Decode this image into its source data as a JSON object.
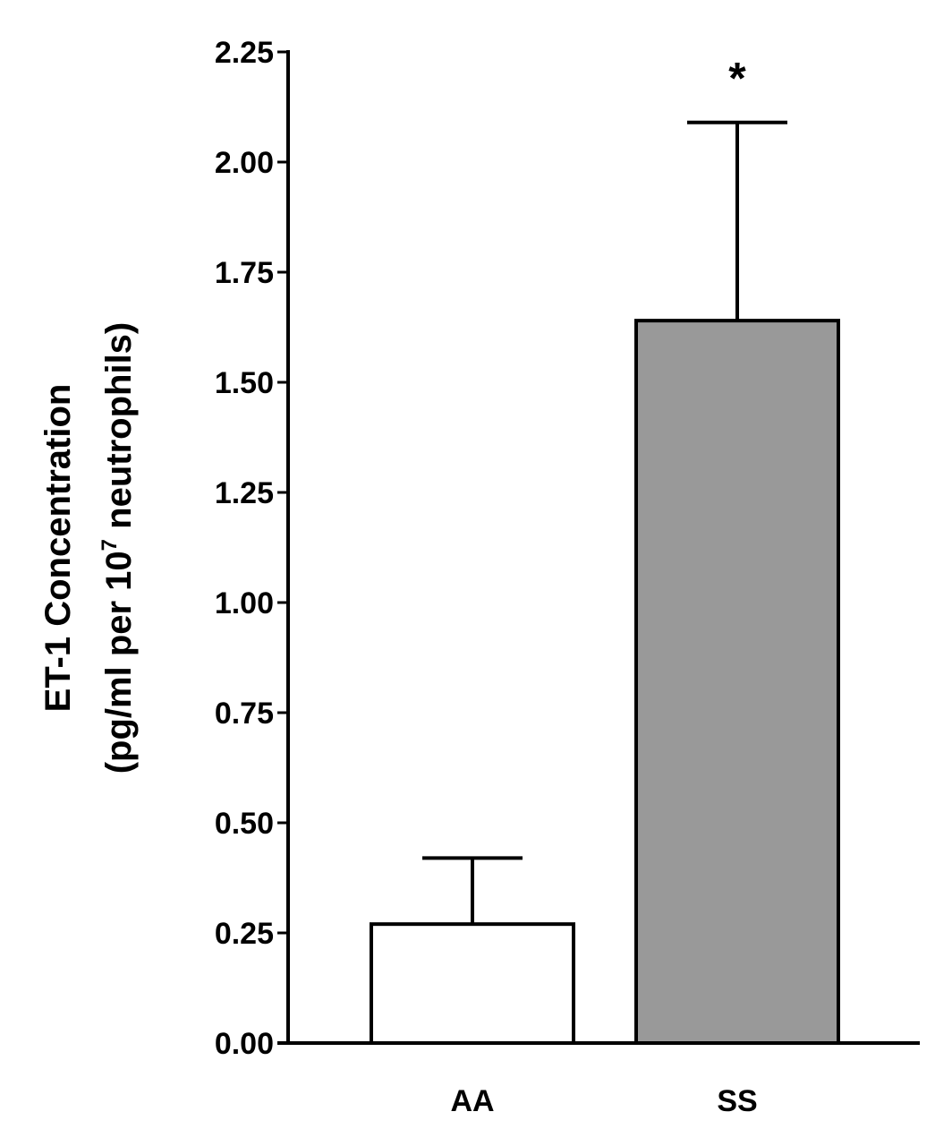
{
  "chart_data": {
    "type": "bar",
    "categories": [
      "AA",
      "SS"
    ],
    "values": [
      0.27,
      1.64
    ],
    "errors": [
      0.15,
      0.45
    ],
    "bar_colors": [
      "#ffffff",
      "#999999"
    ],
    "annotations": [
      "",
      "*"
    ],
    "ylabel_line1": "ET-1 Concentration",
    "ylabel_line2_pre": "(pg/ml per 10",
    "ylabel_line2_sup": "7",
    "ylabel_line2_post": " neutrophils)",
    "ylim": [
      0,
      2.25
    ],
    "yticks": [
      "0.00",
      "0.25",
      "0.50",
      "0.75",
      "1.00",
      "1.25",
      "1.50",
      "1.75",
      "2.00",
      "2.25"
    ]
  }
}
